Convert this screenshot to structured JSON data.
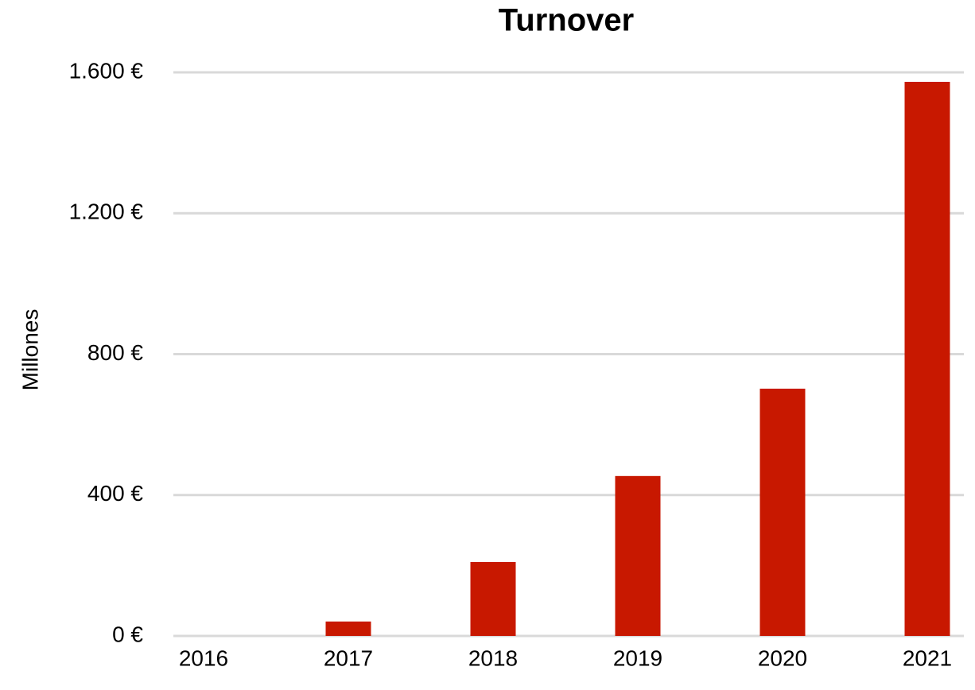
{
  "chart_data": {
    "type": "bar",
    "title": "Turnover",
    "y_label": "Millones",
    "categories": [
      "2016",
      "2017",
      "2018",
      "2019",
      "2020",
      "2021"
    ],
    "values": [
      0,
      41,
      210,
      454,
      702,
      1573
    ],
    "color": "#c81800",
    "ylim": [
      0,
      1600
    ],
    "yticks": [
      {
        "value": 0,
        "label": "0 €"
      },
      {
        "value": 400,
        "label": "400 €"
      },
      {
        "value": 800,
        "label": "800 €"
      },
      {
        "value": 1200,
        "label": "1.200 €"
      },
      {
        "value": 1600,
        "label": "1.600 €"
      }
    ],
    "grid": true
  }
}
